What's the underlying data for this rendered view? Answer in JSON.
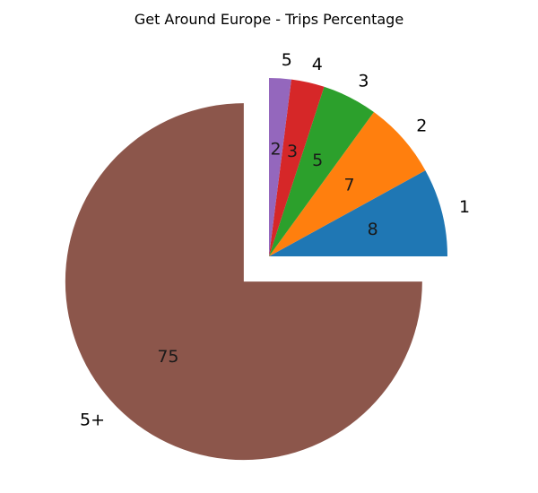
{
  "chart_data": {
    "type": "pie",
    "title": "Get Around Europe - Trips Percentage",
    "categories": [
      "1",
      "2",
      "3",
      "4",
      "5",
      "5+"
    ],
    "values": [
      8,
      7,
      5,
      3,
      2,
      75
    ],
    "value_labels": [
      "8",
      "7",
      "5",
      "3",
      "2",
      "75"
    ],
    "colors": [
      "#1f77b4",
      "#ff7f0e",
      "#2ca02c",
      "#d62728",
      "#9467bd",
      "#8c564b"
    ],
    "exploded": [
      false,
      false,
      false,
      false,
      false,
      true
    ],
    "start_angle_deg": 0,
    "direction": "counterclockwise"
  }
}
